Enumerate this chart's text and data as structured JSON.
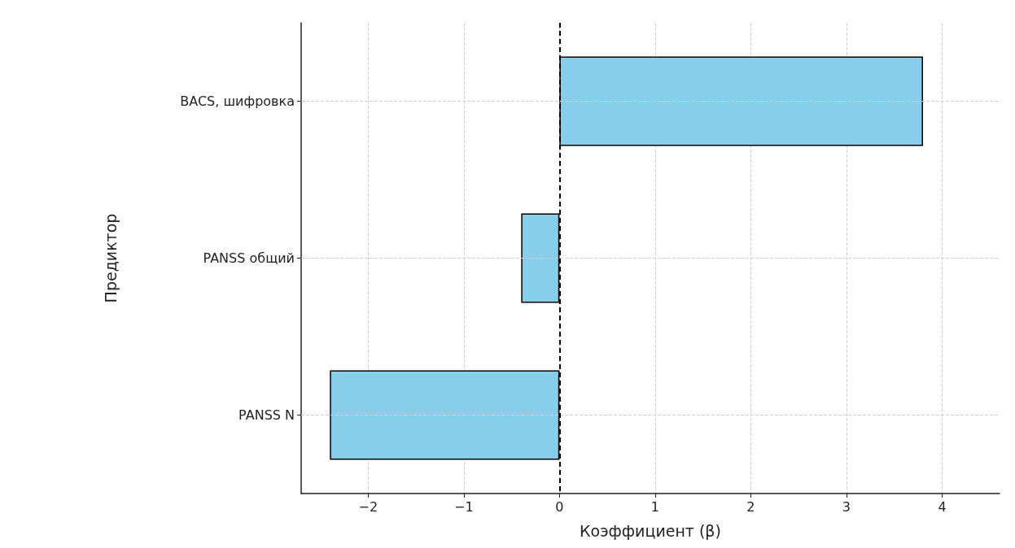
{
  "chart_data": {
    "type": "bar",
    "orientation": "horizontal",
    "xlabel": "Коэффициент (β)",
    "ylabel": "Предиктор",
    "categories": [
      "BACS, шифровка",
      "PANSS общий",
      "PANSS N"
    ],
    "values": [
      3.8,
      -0.4,
      -2.4
    ],
    "color": "#87ceeb",
    "xlim": [
      -2.7,
      4.6
    ],
    "xticks": [
      {
        "value": -2,
        "label": "−2"
      },
      {
        "value": -1,
        "label": "−1"
      },
      0,
      1,
      2,
      3,
      4
    ],
    "ref_lines": [
      {
        "axis": "x",
        "value": 0,
        "color": "#000000",
        "line_style": "dashed"
      }
    ],
    "grid": true
  }
}
